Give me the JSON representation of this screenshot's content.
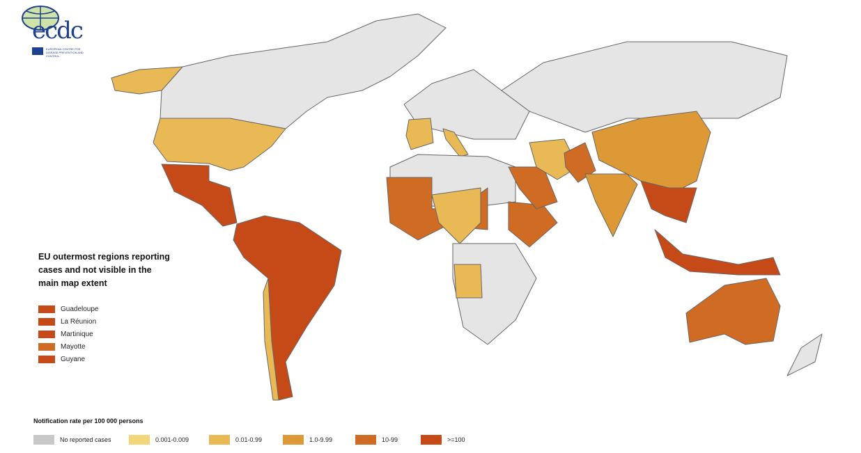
{
  "logo": {
    "text": "ecdc",
    "subtitle": "EUROPEAN CENTRE FOR DISEASE PREVENTION AND CONTROL"
  },
  "outermost": {
    "title": "EU outermost regions reporting cases and not visible in the main map extent",
    "items": [
      {
        "label": "Guadeloupe",
        "color": "#c54a17"
      },
      {
        "label": "La Réunion",
        "color": "#c54a17"
      },
      {
        "label": "Martinique",
        "color": "#c54a17"
      },
      {
        "label": "Mayotte",
        "color": "#d06b24"
      },
      {
        "label": "Guyane",
        "color": "#c54a17"
      }
    ]
  },
  "legend": {
    "title": "Notification rate per 100 000 persons",
    "items": [
      {
        "label": "No reported cases",
        "color": "#c8c8c8"
      },
      {
        "label": "0.001-0.009",
        "color": "#f0d77a"
      },
      {
        "label": "0.01-0.99",
        "color": "#e9b956"
      },
      {
        "label": "1.0-9.99",
        "color": "#dd9936"
      },
      {
        "label": "10-99",
        "color": "#d06b24"
      },
      {
        "label": ">=100",
        "color": "#c54a17"
      }
    ]
  },
  "regions": [
    {
      "name": "canada-greenland",
      "class": "No reported cases",
      "fill": "#e5e5e5"
    },
    {
      "name": "alaska",
      "class": "0.01-0.99",
      "fill": "#e9b956"
    },
    {
      "name": "usa",
      "class": "0.01-0.99",
      "fill": "#e9b956"
    },
    {
      "name": "mexico-central-america",
      "class": ">=100",
      "fill": "#c54a17"
    },
    {
      "name": "south-america",
      "class": ">=100",
      "fill": "#c54a17"
    },
    {
      "name": "chile",
      "class": "0.01-0.99",
      "fill": "#e9b956"
    },
    {
      "name": "europe",
      "class": "No reported cases",
      "fill": "#e5e5e5"
    },
    {
      "name": "iberia",
      "class": "0.01-0.99",
      "fill": "#e9b956"
    },
    {
      "name": "italy",
      "class": "0.01-0.99",
      "fill": "#e9b956"
    },
    {
      "name": "russia",
      "class": "No reported cases",
      "fill": "#e5e5e5"
    },
    {
      "name": "north-africa",
      "class": "No reported cases",
      "fill": "#e5e5e5"
    },
    {
      "name": "west-africa",
      "class": "10-99",
      "fill": "#d06b24"
    },
    {
      "name": "central-africa",
      "class": "0.01-0.99",
      "fill": "#e9b956"
    },
    {
      "name": "southern-africa",
      "class": "No reported cases",
      "fill": "#e5e5e5"
    },
    {
      "name": "angola",
      "class": "0.01-0.99",
      "fill": "#e9b956"
    },
    {
      "name": "ethiopia",
      "class": "10-99",
      "fill": "#d06b24"
    },
    {
      "name": "saudi-arabia",
      "class": "10-99",
      "fill": "#d06b24"
    },
    {
      "name": "iran",
      "class": "0.01-0.99",
      "fill": "#e9b956"
    },
    {
      "name": "afghanistan-pakistan",
      "class": "10-99",
      "fill": "#d06b24"
    },
    {
      "name": "china",
      "class": "1.0-9.99",
      "fill": "#dd9936"
    },
    {
      "name": "india",
      "class": "1.0-9.99",
      "fill": "#dd9936"
    },
    {
      "name": "southeast-asia",
      "class": ">=100",
      "fill": "#c54a17"
    },
    {
      "name": "indonesia",
      "class": ">=100",
      "fill": "#c54a17"
    },
    {
      "name": "australia",
      "class": "10-99",
      "fill": "#d06b24"
    },
    {
      "name": "new-zealand",
      "class": "No reported cases",
      "fill": "#e5e5e5"
    }
  ]
}
